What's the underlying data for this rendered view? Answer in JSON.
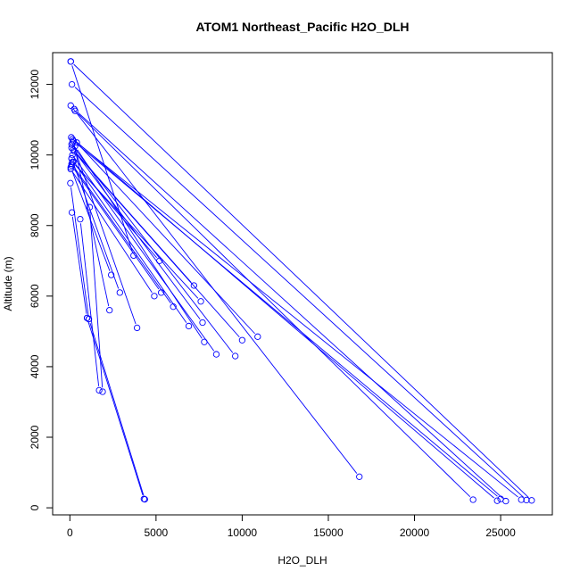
{
  "chart_data": {
    "type": "scatter",
    "title": "ATOM1 Northeast_Pacific H2O_DLH",
    "xlabel": "H2O_DLH",
    "ylabel": "Altitude (m)",
    "xlim": [
      -1000,
      28000
    ],
    "ylim": [
      -200,
      12900
    ],
    "xticks": [
      0,
      5000,
      10000,
      15000,
      20000,
      25000
    ],
    "yticks": [
      0,
      2000,
      4000,
      6000,
      8000,
      10000,
      12000
    ],
    "series_color": "#0000ff",
    "profiles": [
      [
        [
          50,
          12650
        ],
        [
          26800,
          210
        ]
      ],
      [
        [
          50,
          12650
        ],
        [
          3700,
          7150
        ]
      ],
      [
        [
          120,
          12000
        ],
        [
          26500,
          220
        ]
      ],
      [
        [
          250,
          11300
        ],
        [
          25300,
          190
        ]
      ],
      [
        [
          50,
          11400
        ],
        [
          16800,
          880
        ]
      ],
      [
        [
          300,
          11250
        ],
        [
          23400,
          230
        ]
      ],
      [
        [
          80,
          10500
        ],
        [
          24800,
          200
        ]
      ],
      [
        [
          150,
          10450
        ],
        [
          26200,
          230
        ]
      ],
      [
        [
          200,
          10400
        ],
        [
          25000,
          250
        ]
      ],
      [
        [
          400,
          10350
        ],
        [
          10900,
          4850
        ]
      ],
      [
        [
          100,
          10300
        ],
        [
          9600,
          4300
        ]
      ],
      [
        [
          300,
          10250
        ],
        [
          7800,
          4700
        ]
      ],
      [
        [
          100,
          10200
        ],
        [
          7200,
          6300
        ]
      ],
      [
        [
          250,
          10100
        ],
        [
          10000,
          4750
        ]
      ],
      [
        [
          150,
          10000
        ],
        [
          8500,
          4350
        ]
      ],
      [
        [
          100,
          9900
        ],
        [
          6900,
          5150
        ]
      ],
      [
        [
          200,
          9800
        ],
        [
          5200,
          7000
        ]
      ],
      [
        [
          100,
          9700
        ],
        [
          5300,
          6100
        ]
      ],
      [
        [
          50,
          9600
        ],
        [
          4900,
          6000
        ]
      ],
      [
        [
          150,
          9800
        ],
        [
          7600,
          5850
        ]
      ],
      [
        [
          100,
          9750
        ],
        [
          6000,
          5700
        ]
      ],
      [
        [
          200,
          10150
        ],
        [
          7700,
          5250
        ]
      ],
      [
        [
          50,
          9650
        ],
        [
          2400,
          6600
        ]
      ],
      [
        [
          100,
          9900
        ],
        [
          2900,
          6100
        ]
      ],
      [
        [
          150,
          10350
        ],
        [
          3900,
          5100
        ]
      ],
      [
        [
          200,
          10400
        ],
        [
          2300,
          5600
        ]
      ],
      [
        [
          30,
          9200
        ],
        [
          1100,
          5350
        ]
      ],
      [
        [
          120,
          8370
        ],
        [
          1000,
          5380
        ]
      ],
      [
        [
          600,
          8180
        ],
        [
          1700,
          3330
        ]
      ],
      [
        [
          1150,
          8520
        ],
        [
          1900,
          3290
        ]
      ],
      [
        [
          1000,
          5380
        ],
        [
          4300,
          250
        ]
      ],
      [
        [
          1100,
          5350
        ],
        [
          4350,
          240
        ]
      ]
    ]
  }
}
